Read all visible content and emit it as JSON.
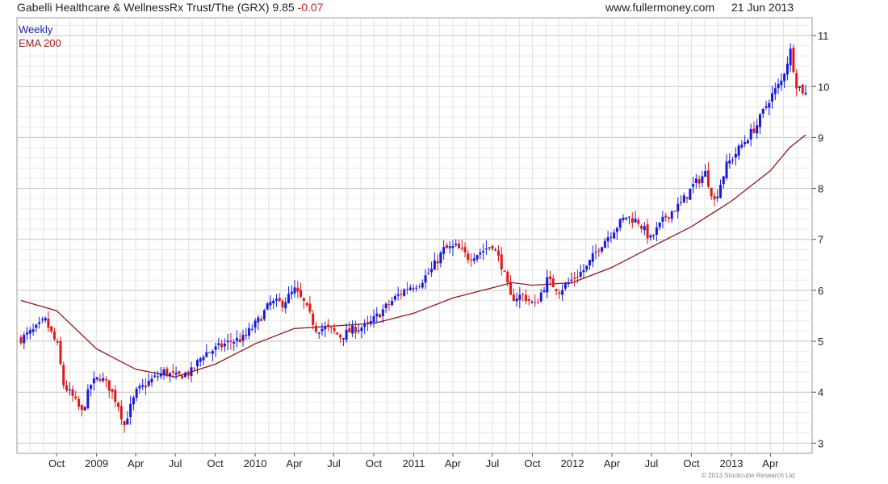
{
  "header": {
    "title": "Gabelli Healthcare & WellnessRx Trust/The (GRX) 9.85",
    "change": "-0.07",
    "site": "www.fullermoney.com",
    "date": "21 Jun 2013"
  },
  "copyright": "© 2013 Stockcube Research Ltd",
  "colors": {
    "up": "#1a1ad6",
    "down": "#e01818",
    "ema": "#8b1a1a",
    "grid": "#d4d4d4"
  },
  "chart_data": {
    "type": "candlestick",
    "frequency": "weekly",
    "x_range": [
      "2008-07-11",
      "2013-06-21"
    ],
    "ylim": [
      2.8,
      11.35
    ],
    "y_ticks": [
      3,
      4,
      5,
      6,
      7,
      8,
      9,
      10,
      11
    ],
    "x_ticks": [
      {
        "label": "Oct",
        "date": "2008-10-01"
      },
      {
        "label": "2009",
        "date": "2009-01-01"
      },
      {
        "label": "Apr",
        "date": "2009-04-01"
      },
      {
        "label": "Jul",
        "date": "2009-07-01"
      },
      {
        "label": "Oct",
        "date": "2009-10-01"
      },
      {
        "label": "2010",
        "date": "2010-01-01"
      },
      {
        "label": "Apr",
        "date": "2010-04-01"
      },
      {
        "label": "Jul",
        "date": "2010-07-01"
      },
      {
        "label": "Oct",
        "date": "2010-10-01"
      },
      {
        "label": "2011",
        "date": "2011-01-01"
      },
      {
        "label": "Apr",
        "date": "2011-04-01"
      },
      {
        "label": "Jul",
        "date": "2011-07-01"
      },
      {
        "label": "Oct",
        "date": "2011-10-01"
      },
      {
        "label": "2012",
        "date": "2012-01-01"
      },
      {
        "label": "Apr",
        "date": "2012-04-01"
      },
      {
        "label": "Jul",
        "date": "2012-07-01"
      },
      {
        "label": "Oct",
        "date": "2012-10-01"
      },
      {
        "label": "2013",
        "date": "2013-01-01"
      },
      {
        "label": "Apr",
        "date": "2013-04-01"
      }
    ],
    "series": [
      {
        "name": "Weekly",
        "kind": "weekly close (approx.)",
        "x": [
          "2008-07-11",
          "2008-08-08",
          "2008-09-05",
          "2008-10-03",
          "2008-10-17",
          "2008-11-07",
          "2008-11-28",
          "2008-12-19",
          "2009-01-09",
          "2009-01-30",
          "2009-02-20",
          "2009-03-06",
          "2009-03-13",
          "2009-04-03",
          "2009-05-01",
          "2009-06-05",
          "2009-07-03",
          "2009-08-07",
          "2009-09-04",
          "2009-10-02",
          "2009-11-06",
          "2009-12-04",
          "2010-01-08",
          "2010-02-05",
          "2010-03-05",
          "2010-04-02",
          "2010-04-23",
          "2010-05-21",
          "2010-06-18",
          "2010-07-16",
          "2010-08-20",
          "2010-09-17",
          "2010-10-15",
          "2010-11-19",
          "2010-12-17",
          "2011-01-14",
          "2011-02-11",
          "2011-03-11",
          "2011-04-08",
          "2011-05-06",
          "2011-06-03",
          "2011-07-01",
          "2011-07-22",
          "2011-08-12",
          "2011-09-09",
          "2011-10-07",
          "2011-11-04",
          "2011-12-02",
          "2011-12-30",
          "2012-02-03",
          "2012-03-02",
          "2012-04-06",
          "2012-05-04",
          "2012-06-01",
          "2012-06-29",
          "2012-08-03",
          "2012-09-07",
          "2012-10-05",
          "2012-11-02",
          "2012-11-23",
          "2012-12-21",
          "2013-01-25",
          "2013-03-01",
          "2013-03-29",
          "2013-04-26",
          "2013-05-17",
          "2013-05-31",
          "2013-06-21"
        ],
        "values": [
          5.05,
          5.2,
          5.4,
          4.9,
          4.15,
          3.9,
          3.6,
          4.15,
          4.3,
          4.1,
          3.75,
          3.35,
          3.55,
          4.0,
          4.2,
          4.4,
          4.3,
          4.4,
          4.75,
          4.85,
          5.0,
          5.05,
          5.4,
          5.75,
          5.75,
          6.0,
          5.75,
          5.25,
          5.25,
          5.1,
          5.25,
          5.3,
          5.55,
          5.85,
          6.05,
          6.15,
          6.4,
          6.8,
          6.85,
          6.65,
          6.75,
          6.9,
          6.5,
          5.85,
          5.9,
          5.7,
          6.2,
          6.0,
          6.2,
          6.45,
          6.85,
          7.2,
          7.45,
          7.35,
          7.0,
          7.45,
          7.7,
          8.05,
          8.3,
          7.75,
          8.45,
          8.85,
          9.25,
          9.75,
          10.1,
          10.7,
          10.05,
          9.85
        ]
      },
      {
        "name": "EMA 200",
        "x": [
          "2008-07-11",
          "2008-10-01",
          "2009-01-01",
          "2009-04-01",
          "2009-07-01",
          "2009-10-01",
          "2010-01-01",
          "2010-04-01",
          "2010-07-01",
          "2010-10-01",
          "2011-01-01",
          "2011-04-01",
          "2011-07-01",
          "2011-08-15",
          "2011-10-01",
          "2012-01-01",
          "2012-04-01",
          "2012-07-01",
          "2012-10-01",
          "2013-01-01",
          "2013-04-01",
          "2013-05-15",
          "2013-06-21"
        ],
        "values": [
          5.8,
          5.6,
          4.85,
          4.45,
          4.3,
          4.55,
          4.95,
          5.25,
          5.3,
          5.35,
          5.55,
          5.85,
          6.05,
          6.15,
          6.1,
          6.15,
          6.45,
          6.85,
          7.25,
          7.75,
          8.35,
          8.8,
          9.05
        ]
      }
    ]
  }
}
